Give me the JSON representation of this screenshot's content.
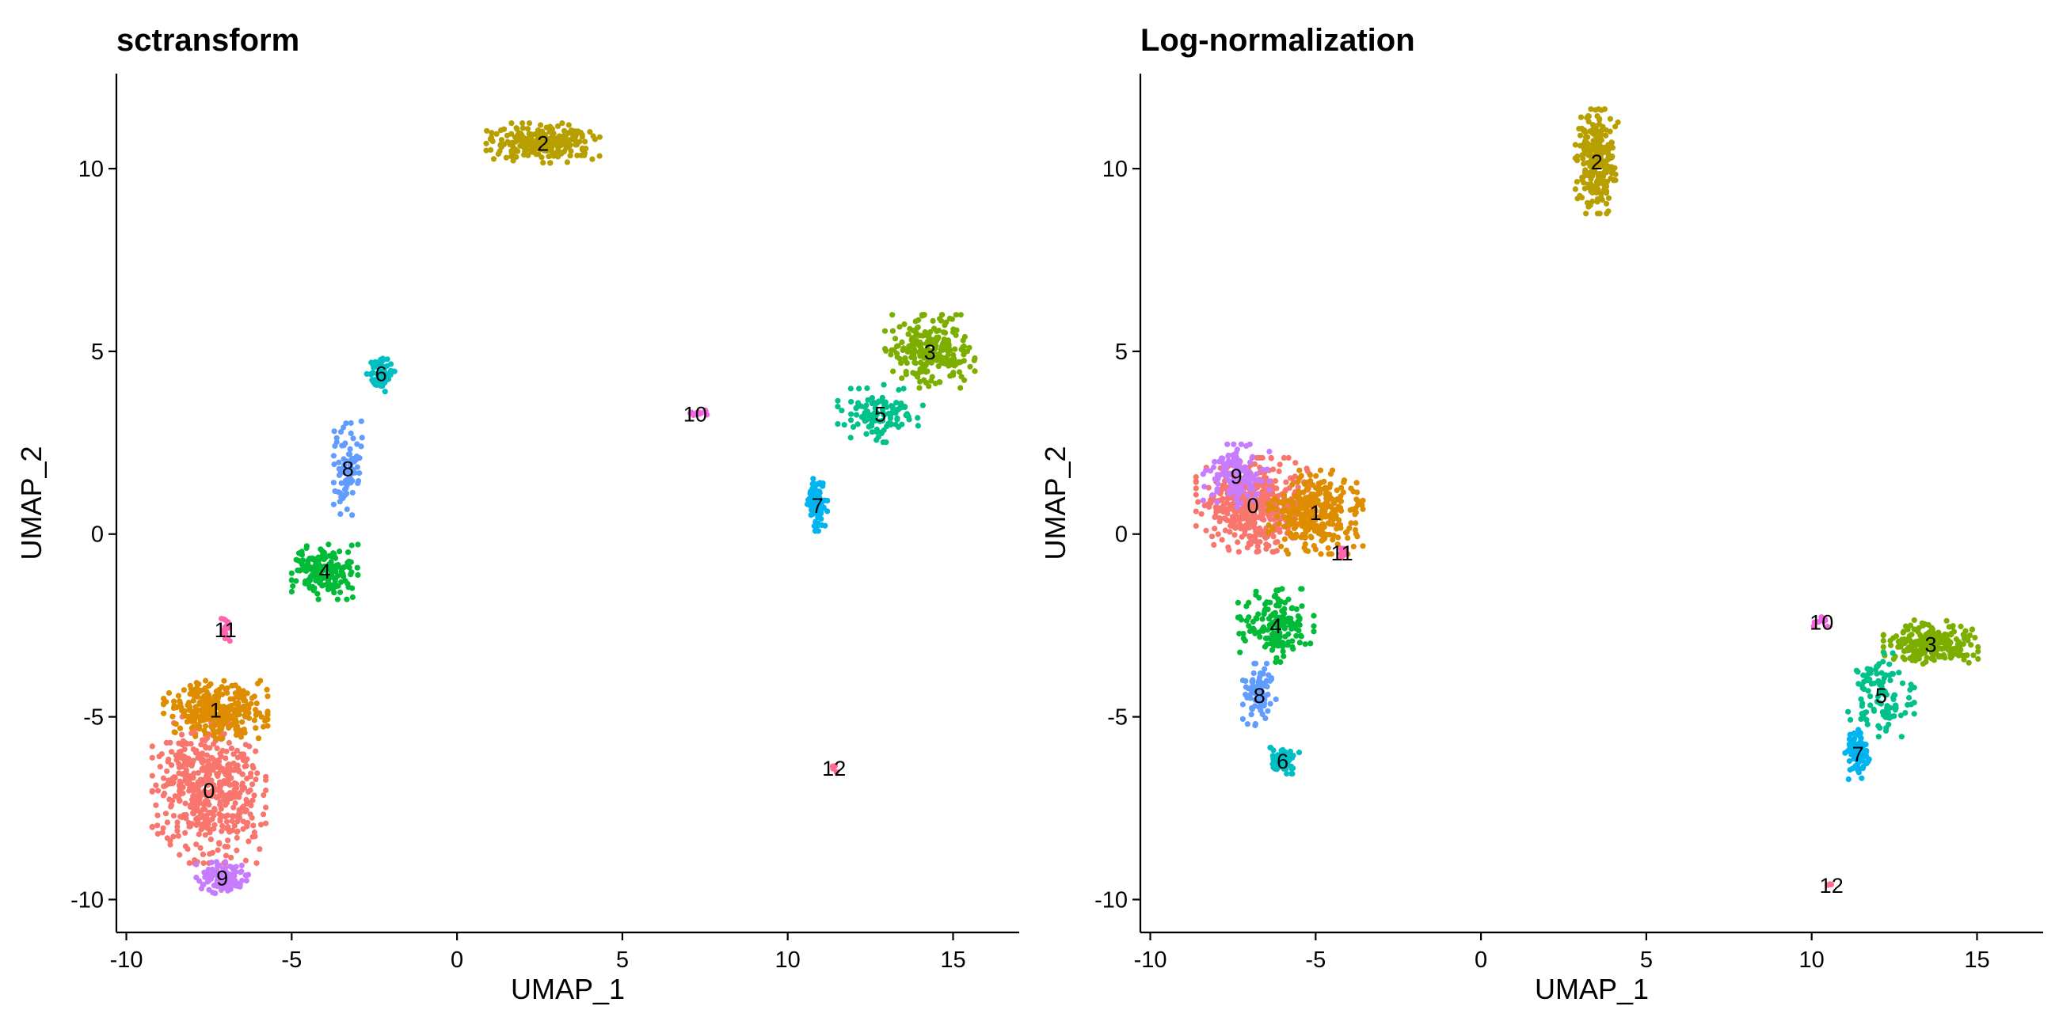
{
  "chart_data": [
    {
      "type": "scatter",
      "title": "sctransform",
      "xlabel": "UMAP_1",
      "ylabel": "UMAP_2",
      "xlim": [
        -10.3,
        17.0
      ],
      "ylim": [
        -10.9,
        12.6
      ],
      "xticks": [
        -10,
        -5,
        0,
        5,
        10,
        15
      ],
      "yticks": [
        -10,
        -5,
        0,
        5,
        10
      ],
      "xtick_labels": [
        "-10",
        "-5",
        "0",
        "5",
        "10",
        "15"
      ],
      "ytick_labels": [
        "-10",
        "-5",
        "0",
        "5",
        "10"
      ],
      "legend": "none",
      "clusters": [
        {
          "label": "0",
          "color": "#F8766D",
          "center": [
            -7.5,
            -7.0
          ],
          "spread": [
            1.2,
            1.4
          ],
          "n": 500
        },
        {
          "label": "1",
          "color": "#DE8C00",
          "center": [
            -7.3,
            -4.8
          ],
          "spread": [
            1.1,
            0.55
          ],
          "n": 300
        },
        {
          "label": "2",
          "color": "#B79F00",
          "center": [
            2.6,
            10.7
          ],
          "spread": [
            1.2,
            0.38
          ],
          "n": 240
        },
        {
          "label": "3",
          "color": "#7CAE00",
          "center": [
            14.3,
            5.0
          ],
          "spread": [
            0.95,
            0.7
          ],
          "n": 240
        },
        {
          "label": "4",
          "color": "#00BA38",
          "center": [
            -4.0,
            -1.0
          ],
          "spread": [
            0.7,
            0.55
          ],
          "n": 160
        },
        {
          "label": "5",
          "color": "#00C08B",
          "center": [
            12.8,
            3.3
          ],
          "spread": [
            0.9,
            0.55
          ],
          "n": 110
        },
        {
          "label": "6",
          "color": "#00BFC4",
          "center": [
            -2.3,
            4.4
          ],
          "spread": [
            0.3,
            0.4
          ],
          "n": 70
        },
        {
          "label": "7",
          "color": "#00B4F0",
          "center": [
            10.9,
            0.8
          ],
          "spread": [
            0.22,
            0.5
          ],
          "n": 80
        },
        {
          "label": "8",
          "color": "#619CFF",
          "center": [
            -3.3,
            1.8
          ],
          "spread": [
            0.3,
            0.9
          ],
          "n": 90
        },
        {
          "label": "9",
          "color": "#C77CFF",
          "center": [
            -7.1,
            -9.4
          ],
          "spread": [
            0.55,
            0.3
          ],
          "n": 120
        },
        {
          "label": "10",
          "color": "#F564E3",
          "center": [
            7.2,
            3.3
          ],
          "spread": [
            0.25,
            0.06
          ],
          "n": 12
        },
        {
          "label": "11",
          "color": "#FF64B0",
          "center": [
            -7.0,
            -2.6
          ],
          "spread": [
            0.1,
            0.25
          ],
          "n": 16
        },
        {
          "label": "12",
          "color": "#FF6C91",
          "center": [
            11.4,
            -6.4
          ],
          "spread": [
            0.08,
            0.08
          ],
          "n": 4
        }
      ]
    },
    {
      "type": "scatter",
      "title": "Log-normalization",
      "xlabel": "UMAP_1",
      "ylabel": "UMAP_2",
      "xlim": [
        -10.3,
        17.0
      ],
      "ylim": [
        -10.9,
        12.6
      ],
      "xticks": [
        -10,
        -5,
        0,
        5,
        10,
        15
      ],
      "yticks": [
        -10,
        -5,
        0,
        5,
        10
      ],
      "xtick_labels": [
        "-10",
        "-5",
        "0",
        "5",
        "10",
        "15"
      ],
      "ytick_labels": [
        "-10",
        "-5",
        "0",
        "5",
        "10"
      ],
      "legend": "none",
      "clusters": [
        {
          "label": "0",
          "color": "#F8766D",
          "center": [
            -6.9,
            0.8
          ],
          "spread": [
            1.2,
            0.9
          ],
          "n": 450
        },
        {
          "label": "1",
          "color": "#DE8C00",
          "center": [
            -5.0,
            0.6
          ],
          "spread": [
            1.0,
            0.8
          ],
          "n": 300
        },
        {
          "label": "2",
          "color": "#B79F00",
          "center": [
            3.5,
            10.2
          ],
          "spread": [
            0.45,
            1.0
          ],
          "n": 240
        },
        {
          "label": "3",
          "color": "#7CAE00",
          "center": [
            13.6,
            -3.0
          ],
          "spread": [
            1.0,
            0.45
          ],
          "n": 240
        },
        {
          "label": "4",
          "color": "#00BA38",
          "center": [
            -6.2,
            -2.5
          ],
          "spread": [
            0.8,
            0.7
          ],
          "n": 160
        },
        {
          "label": "5",
          "color": "#00C08B",
          "center": [
            12.1,
            -4.4
          ],
          "spread": [
            0.7,
            0.8
          ],
          "n": 110
        },
        {
          "label": "6",
          "color": "#00BFC4",
          "center": [
            -6.0,
            -6.2
          ],
          "spread": [
            0.35,
            0.25
          ],
          "n": 70
        },
        {
          "label": "7",
          "color": "#00B4F0",
          "center": [
            11.4,
            -6.0
          ],
          "spread": [
            0.3,
            0.5
          ],
          "n": 80
        },
        {
          "label": "8",
          "color": "#619CFF",
          "center": [
            -6.7,
            -4.4
          ],
          "spread": [
            0.35,
            0.6
          ],
          "n": 90
        },
        {
          "label": "9",
          "color": "#C77CFF",
          "center": [
            -7.4,
            1.6
          ],
          "spread": [
            0.7,
            0.6
          ],
          "n": 120
        },
        {
          "label": "10",
          "color": "#F564E3",
          "center": [
            10.3,
            -2.4
          ],
          "spread": [
            0.35,
            0.12
          ],
          "n": 12
        },
        {
          "label": "11",
          "color": "#FF64B0",
          "center": [
            -4.2,
            -0.5
          ],
          "spread": [
            0.1,
            0.12
          ],
          "n": 16
        },
        {
          "label": "12",
          "color": "#FF6C91",
          "center": [
            10.6,
            -9.6
          ],
          "spread": [
            0.08,
            0.08
          ],
          "n": 4
        }
      ]
    }
  ]
}
